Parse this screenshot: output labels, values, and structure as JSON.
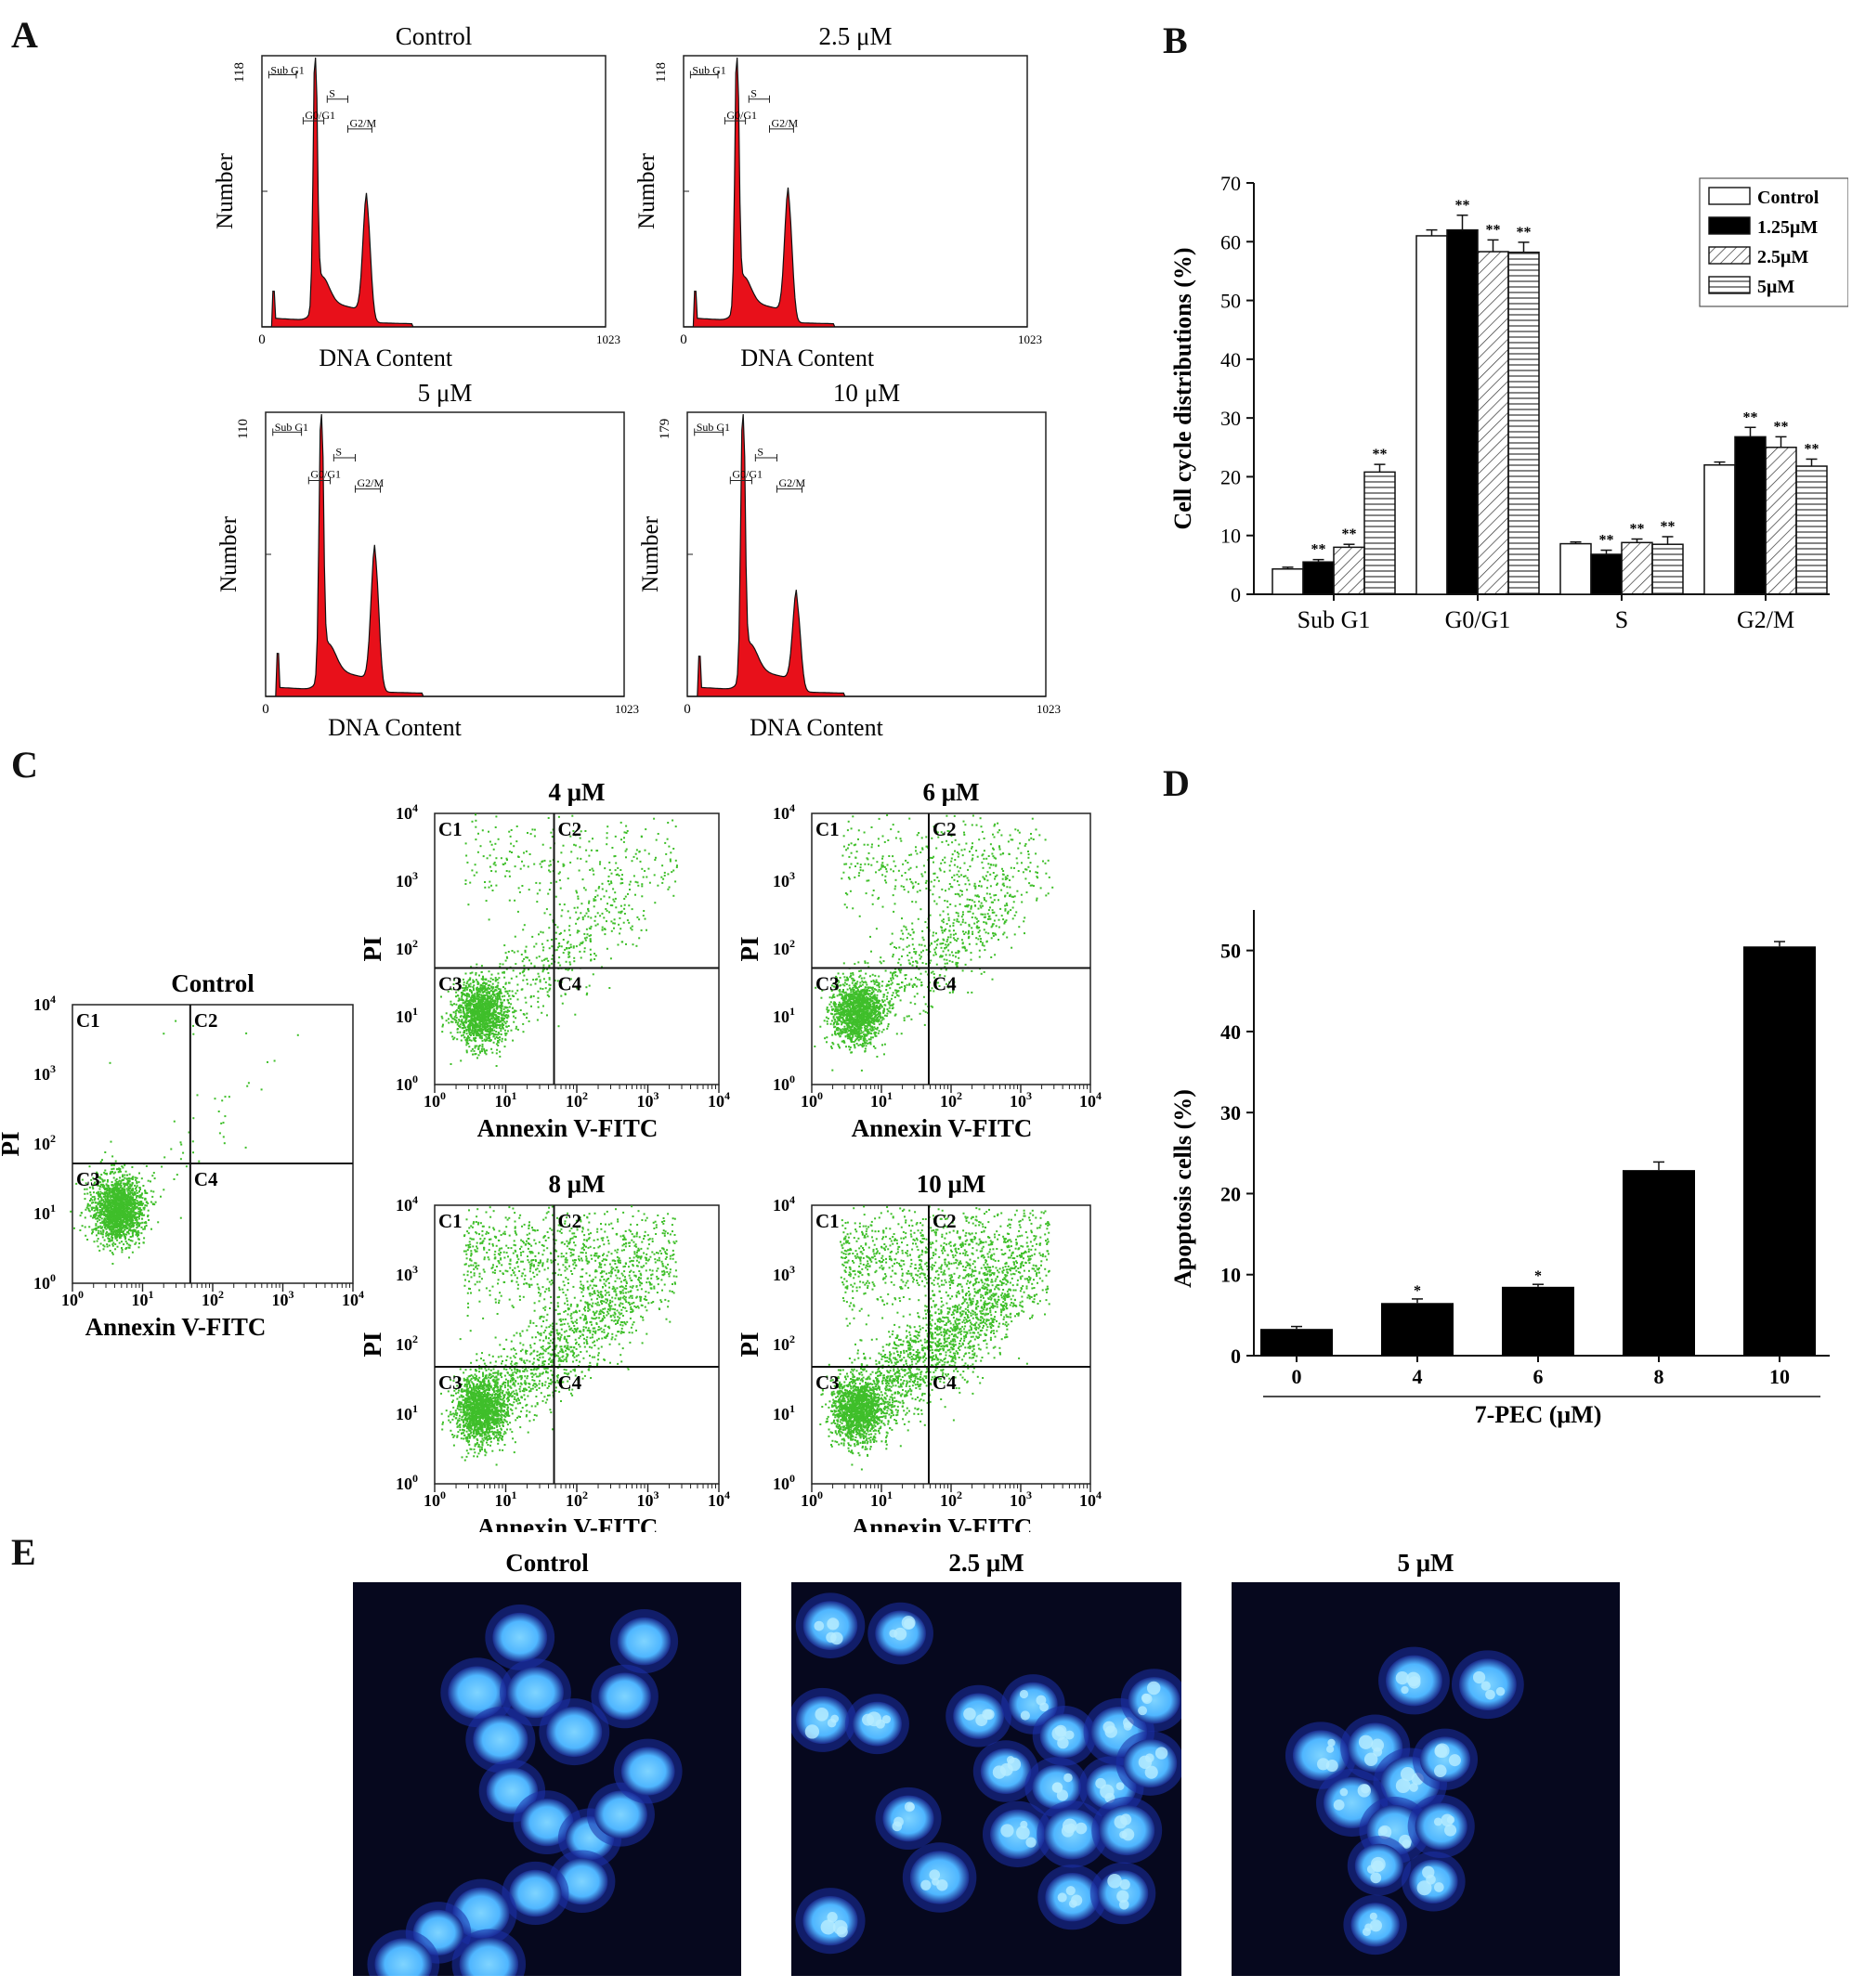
{
  "panels": {
    "A": {
      "letter": "A",
      "histograms": [
        {
          "title": "Control",
          "ymax": "118",
          "ylabel": "Number",
          "xlabel": "DNA Content",
          "x0": "0",
          "x1": "1023"
        },
        {
          "title": "2.5 μM",
          "ymax": "118",
          "ylabel": "Number",
          "xlabel": "DNA Content",
          "x0": "0",
          "x1": "1023"
        },
        {
          "title": "5 μM",
          "ymax": "110",
          "ylabel": "Number",
          "xlabel": "DNA Content",
          "x0": "0",
          "x1": "1023"
        },
        {
          "title": "10 μM",
          "ymax": "179",
          "ylabel": "Number",
          "xlabel": "DNA Content",
          "x0": "0",
          "x1": "1023"
        }
      ],
      "gates": [
        "Sub G1",
        "G0/G1",
        "S",
        "G2/M"
      ],
      "fill_color": "#e8101a"
    },
    "B": {
      "letter": "B"
    },
    "C": {
      "letter": "C",
      "plots": [
        {
          "title": "Control",
          "ylabel": "PI",
          "xlabel": "Annexin V-FITC"
        },
        {
          "title": "4 μM",
          "ylabel": "PI",
          "xlabel": "Annexin V-FITC"
        },
        {
          "title": "6 μM",
          "ylabel": "PI",
          "xlabel": "Annexin V-FITC"
        },
        {
          "title": "8 μM",
          "ylabel": "PI",
          "xlabel": "Annexin V-FITC"
        },
        {
          "title": "10 μM",
          "ylabel": "PI",
          "xlabel": "Annexin V-FITC"
        }
      ],
      "quadrants": [
        "C1",
        "C2",
        "C3",
        "C4"
      ],
      "dot_color": "#3fbf2a"
    },
    "D": {
      "letter": "D"
    },
    "E": {
      "letter": "E",
      "images": [
        {
          "title": "Control"
        },
        {
          "title": "2.5 μM"
        },
        {
          "title": "5 μM"
        }
      ],
      "nucleus_color": "#4fb6ff",
      "background_color": "#06081e"
    }
  },
  "chart_data": [
    {
      "type": "bar",
      "panel": "B",
      "categories": [
        "Sub G1",
        "G0/G1",
        "S",
        "G2/M"
      ],
      "series": [
        {
          "name": "Control",
          "values": [
            4.3,
            61.0,
            8.6,
            22.0
          ],
          "errors": [
            0.3,
            1.0,
            0.3,
            0.5
          ],
          "sig": [
            "",
            "",
            "",
            ""
          ]
        },
        {
          "name": "1.25μM",
          "values": [
            5.5,
            62.0,
            6.8,
            26.8
          ],
          "errors": [
            0.4,
            2.5,
            0.7,
            1.6
          ],
          "sig": [
            "**",
            "**",
            "**",
            "**"
          ]
        },
        {
          "name": "2.5μM",
          "values": [
            8.0,
            58.3,
            8.8,
            25.0
          ],
          "errors": [
            0.5,
            2.0,
            0.6,
            1.8
          ],
          "sig": [
            "**",
            "**",
            "**",
            "**"
          ]
        },
        {
          "name": "5μM",
          "values": [
            20.8,
            58.2,
            8.5,
            21.8
          ],
          "errors": [
            1.3,
            1.7,
            1.3,
            1.2
          ],
          "sig": [
            "**",
            "**",
            "**",
            "**"
          ]
        }
      ],
      "ylabel": "Cell cycle distributions (%)",
      "xlabel": "",
      "ylim": [
        0,
        70
      ],
      "yticks": [
        "0",
        "10",
        "20",
        "30",
        "40",
        "50",
        "60",
        "70"
      ],
      "legend": "top-right"
    },
    {
      "type": "bar",
      "panel": "D",
      "categories": [
        "0",
        "4",
        "6",
        "8",
        "10"
      ],
      "values": [
        3.3,
        6.5,
        8.5,
        22.9,
        50.5
      ],
      "errors": [
        0.3,
        0.5,
        0.3,
        1.0,
        0.6
      ],
      "sig": [
        "",
        "*",
        "*",
        "",
        ""
      ],
      "ylabel": "Apoptosis cells (%)",
      "xlabel": "7-PEC (μM)",
      "ylim": [
        0,
        55
      ],
      "yticks": [
        "0",
        "10",
        "20",
        "30",
        "40",
        "50"
      ]
    }
  ]
}
